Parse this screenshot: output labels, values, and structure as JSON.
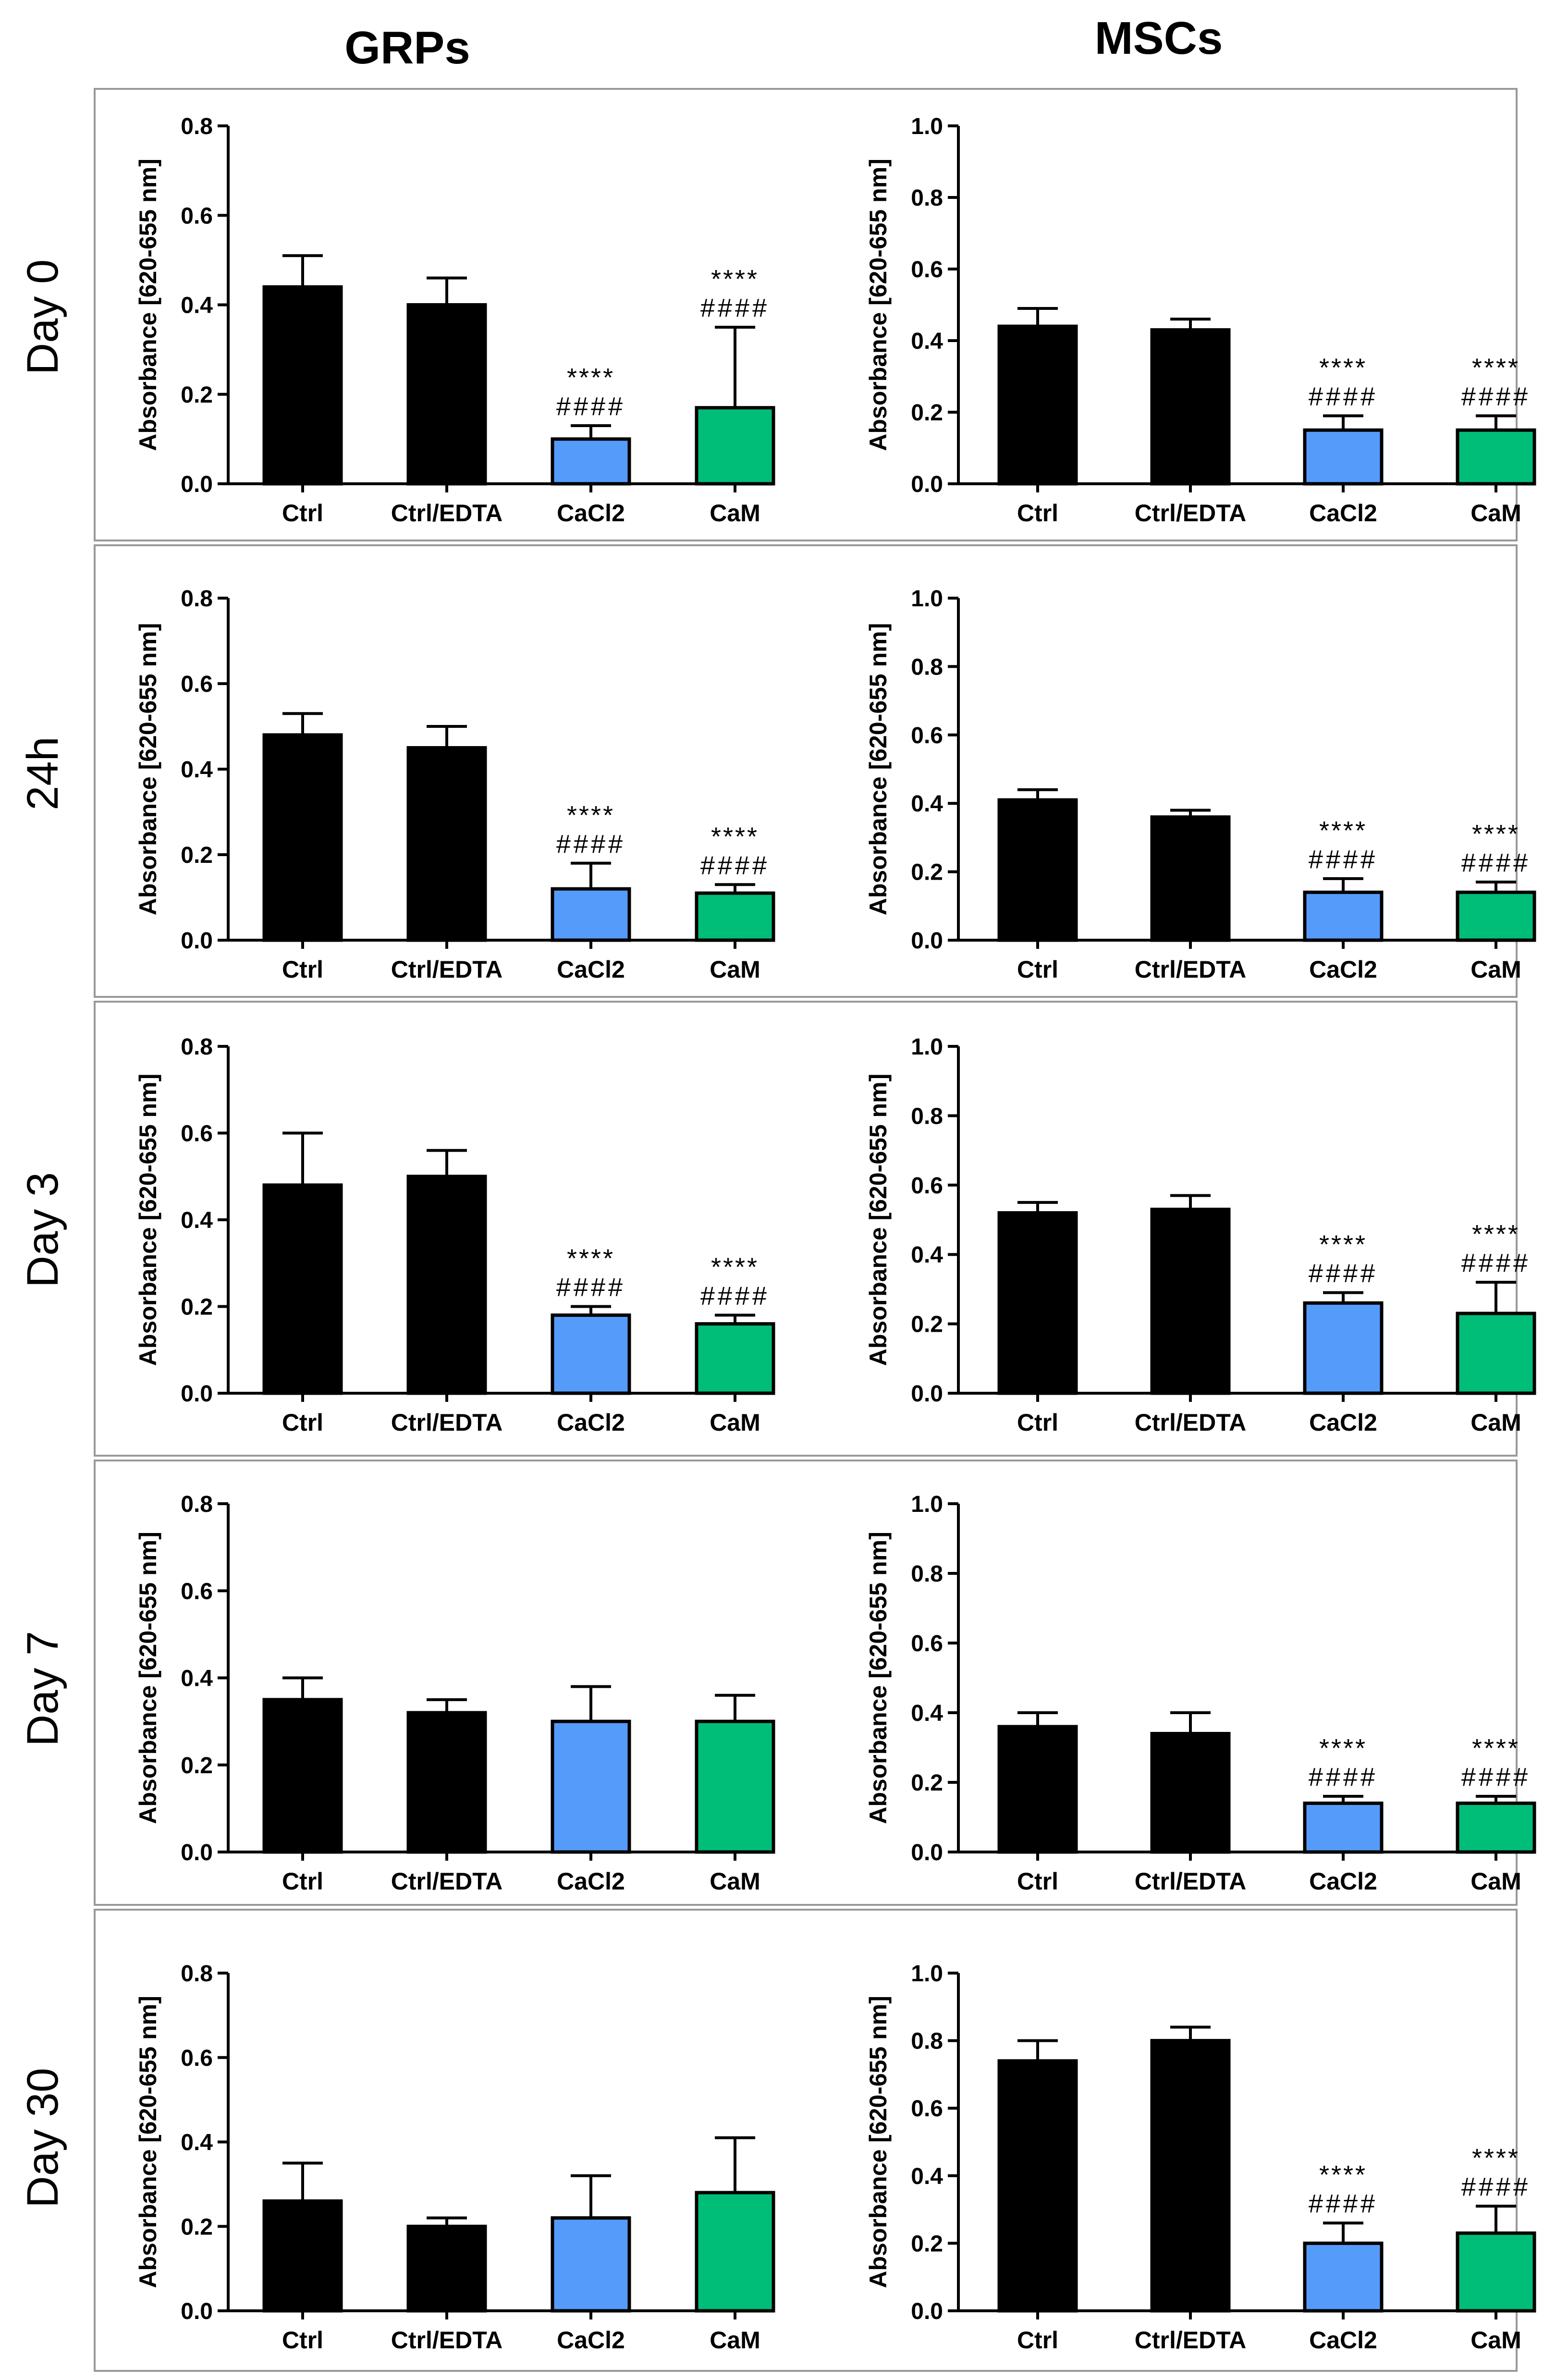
{
  "columns": [
    "GRPs",
    "MSCs"
  ],
  "rows": [
    "Day 0",
    "24h",
    "Day 3",
    "Day 7",
    "Day 30"
  ],
  "colors": {
    "black": "#000000",
    "blue": "#559bfa",
    "green": "#00bd78",
    "panel_border": "#999999"
  },
  "chart_data": [
    {
      "type": "bar",
      "row": "Day 0",
      "column": "GRPs",
      "ylabel": "Absorbance [620-655 nm]",
      "ylim": [
        0,
        0.8
      ],
      "yticks": [
        "0.0",
        "0.2",
        "0.4",
        "0.6",
        "0.8"
      ],
      "yticks_values": [
        0,
        0.2,
        0.4,
        0.6,
        0.8
      ],
      "categories": [
        "Ctrl",
        "Ctrl/EDTA",
        "CaCl2",
        "CaM"
      ],
      "values": [
        0.44,
        0.4,
        0.1,
        0.17
      ],
      "errors": [
        0.07,
        0.06,
        0.03,
        0.18
      ],
      "stars": [
        "",
        "",
        "****",
        "****"
      ],
      "hashes": [
        "",
        "",
        "####",
        "####"
      ]
    },
    {
      "type": "bar",
      "row": "Day 0",
      "column": "MSCs",
      "ylabel": "Absorbance [620-655 nm]",
      "ylim": [
        0,
        1.0
      ],
      "yticks": [
        "0.0",
        "0.2",
        "0.4",
        "0.6",
        "0.8",
        "1.0"
      ],
      "yticks_values": [
        0,
        0.2,
        0.4,
        0.6,
        0.8,
        1.0
      ],
      "categories": [
        "Ctrl",
        "Ctrl/EDTA",
        "CaCl2",
        "CaM"
      ],
      "values": [
        0.44,
        0.43,
        0.15,
        0.15
      ],
      "errors": [
        0.05,
        0.03,
        0.04,
        0.04
      ],
      "stars": [
        "",
        "",
        "****",
        "****"
      ],
      "hashes": [
        "",
        "",
        "####",
        "####"
      ]
    },
    {
      "type": "bar",
      "row": "24h",
      "column": "GRPs",
      "ylabel": "Absorbance [620-655 nm]",
      "ylim": [
        0,
        0.8
      ],
      "yticks": [
        "0.0",
        "0.2",
        "0.4",
        "0.6",
        "0.8"
      ],
      "yticks_values": [
        0,
        0.2,
        0.4,
        0.6,
        0.8
      ],
      "categories": [
        "Ctrl",
        "Ctrl/EDTA",
        "CaCl2",
        "CaM"
      ],
      "values": [
        0.48,
        0.45,
        0.12,
        0.11
      ],
      "errors": [
        0.05,
        0.05,
        0.06,
        0.02
      ],
      "stars": [
        "",
        "",
        "****",
        "****"
      ],
      "hashes": [
        "",
        "",
        "####",
        "####"
      ]
    },
    {
      "type": "bar",
      "row": "24h",
      "column": "MSCs",
      "ylabel": "Absorbance [620-655 nm]",
      "ylim": [
        0,
        1.0
      ],
      "yticks": [
        "0.0",
        "0.2",
        "0.4",
        "0.6",
        "0.8",
        "1.0"
      ],
      "yticks_values": [
        0,
        0.2,
        0.4,
        0.6,
        0.8,
        1.0
      ],
      "categories": [
        "Ctrl",
        "Ctrl/EDTA",
        "CaCl2",
        "CaM"
      ],
      "values": [
        0.41,
        0.36,
        0.14,
        0.14
      ],
      "errors": [
        0.03,
        0.02,
        0.04,
        0.03
      ],
      "stars": [
        "",
        "",
        "****",
        "****"
      ],
      "hashes": [
        "",
        "",
        "####",
        "####"
      ]
    },
    {
      "type": "bar",
      "row": "Day 3",
      "column": "GRPs",
      "ylabel": "Absorbance [620-655 nm]",
      "ylim": [
        0,
        0.8
      ],
      "yticks": [
        "0.0",
        "0.2",
        "0.4",
        "0.6",
        "0.8"
      ],
      "yticks_values": [
        0,
        0.2,
        0.4,
        0.6,
        0.8
      ],
      "categories": [
        "Ctrl",
        "Ctrl/EDTA",
        "CaCl2",
        "CaM"
      ],
      "values": [
        0.48,
        0.5,
        0.18,
        0.16
      ],
      "errors": [
        0.12,
        0.06,
        0.02,
        0.02
      ],
      "stars": [
        "",
        "",
        "****",
        "****"
      ],
      "hashes": [
        "",
        "",
        "####",
        "####"
      ]
    },
    {
      "type": "bar",
      "row": "Day 3",
      "column": "MSCs",
      "ylabel": "Absorbance [620-655 nm]",
      "ylim": [
        0,
        1.0
      ],
      "yticks": [
        "0.0",
        "0.2",
        "0.4",
        "0.6",
        "0.8",
        "1.0"
      ],
      "yticks_values": [
        0,
        0.2,
        0.4,
        0.6,
        0.8,
        1.0
      ],
      "categories": [
        "Ctrl",
        "Ctrl/EDTA",
        "CaCl2",
        "CaM"
      ],
      "values": [
        0.52,
        0.53,
        0.26,
        0.23
      ],
      "errors": [
        0.03,
        0.04,
        0.03,
        0.09
      ],
      "stars": [
        "",
        "",
        "****",
        "****"
      ],
      "hashes": [
        "",
        "",
        "####",
        "####"
      ]
    },
    {
      "type": "bar",
      "row": "Day 7",
      "column": "GRPs",
      "ylabel": "Absorbance [620-655 nm]",
      "ylim": [
        0,
        0.8
      ],
      "yticks": [
        "0.0",
        "0.2",
        "0.4",
        "0.6",
        "0.8"
      ],
      "yticks_values": [
        0,
        0.2,
        0.4,
        0.6,
        0.8
      ],
      "categories": [
        "Ctrl",
        "Ctrl/EDTA",
        "CaCl2",
        "CaM"
      ],
      "values": [
        0.35,
        0.32,
        0.3,
        0.3
      ],
      "errors": [
        0.05,
        0.03,
        0.08,
        0.06
      ],
      "stars": [
        "",
        "",
        "",
        ""
      ],
      "hashes": [
        "",
        "",
        "",
        ""
      ]
    },
    {
      "type": "bar",
      "row": "Day 7",
      "column": "MSCs",
      "ylabel": "Absorbance [620-655 nm]",
      "ylim": [
        0,
        1.0
      ],
      "yticks": [
        "0.0",
        "0.2",
        "0.4",
        "0.6",
        "0.8",
        "1.0"
      ],
      "yticks_values": [
        0,
        0.2,
        0.4,
        0.6,
        0.8,
        1.0
      ],
      "categories": [
        "Ctrl",
        "Ctrl/EDTA",
        "CaCl2",
        "CaM"
      ],
      "values": [
        0.36,
        0.34,
        0.14,
        0.14
      ],
      "errors": [
        0.04,
        0.06,
        0.02,
        0.02
      ],
      "stars": [
        "",
        "",
        "****",
        "****"
      ],
      "hashes": [
        "",
        "",
        "####",
        "####"
      ]
    },
    {
      "type": "bar",
      "row": "Day 30",
      "column": "GRPs",
      "ylabel": "Absorbance [620-655 nm]",
      "ylim": [
        0,
        0.8
      ],
      "yticks": [
        "0.0",
        "0.2",
        "0.4",
        "0.6",
        "0.8"
      ],
      "yticks_values": [
        0,
        0.2,
        0.4,
        0.6,
        0.8
      ],
      "categories": [
        "Ctrl",
        "Ctrl/EDTA",
        "CaCl2",
        "CaM"
      ],
      "values": [
        0.26,
        0.2,
        0.22,
        0.28
      ],
      "errors": [
        0.09,
        0.02,
        0.1,
        0.13
      ],
      "stars": [
        "",
        "",
        "",
        ""
      ],
      "hashes": [
        "",
        "",
        "",
        ""
      ]
    },
    {
      "type": "bar",
      "row": "Day 30",
      "column": "MSCs",
      "ylabel": "Absorbance [620-655 nm]",
      "ylim": [
        0,
        1.0
      ],
      "yticks": [
        "0.0",
        "0.2",
        "0.4",
        "0.6",
        "0.8",
        "1.0"
      ],
      "yticks_values": [
        0,
        0.2,
        0.4,
        0.6,
        0.8,
        1.0
      ],
      "categories": [
        "Ctrl",
        "Ctrl/EDTA",
        "CaCl2",
        "CaM"
      ],
      "values": [
        0.74,
        0.8,
        0.2,
        0.23
      ],
      "errors": [
        0.06,
        0.04,
        0.06,
        0.08
      ],
      "stars": [
        "",
        "",
        "****",
        "****"
      ],
      "hashes": [
        "",
        "",
        "####",
        "####"
      ]
    }
  ]
}
